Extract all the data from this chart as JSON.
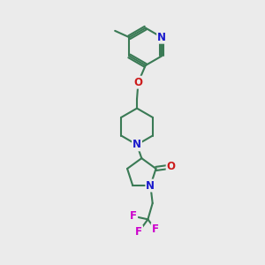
{
  "bg_color": "#ebebeb",
  "bond_color": "#3a7a55",
  "bond_width": 1.5,
  "atom_colors": {
    "N": "#1a1acc",
    "O": "#cc1a1a",
    "F": "#cc00cc",
    "C": "#3a7a55"
  },
  "font_size_atom": 8.5
}
